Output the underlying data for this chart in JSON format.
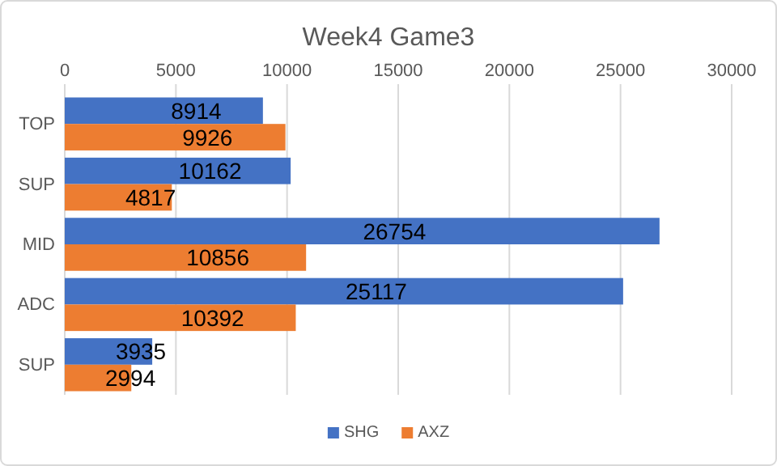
{
  "chart_data": {
    "type": "bar",
    "orientation": "horizontal",
    "title": "Week4 Game3",
    "categories": [
      "TOP",
      "SUP",
      "MID",
      "ADC",
      "SUP"
    ],
    "series": [
      {
        "name": "SHG",
        "color": "#4472c4",
        "values": [
          8914,
          10162,
          26754,
          25117,
          3935
        ]
      },
      {
        "name": "AXZ",
        "color": "#ed7d31",
        "values": [
          9926,
          4817,
          10856,
          10392,
          2994
        ]
      }
    ],
    "xlim": [
      0,
      30000
    ],
    "xticks": [
      0,
      5000,
      10000,
      15000,
      20000,
      25000,
      30000
    ],
    "grid": "x",
    "legend": "bottom",
    "data_labels": true
  }
}
